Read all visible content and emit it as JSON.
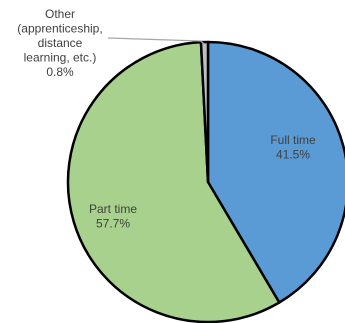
{
  "chart_data": {
    "type": "pie",
    "title": "",
    "slices": [
      {
        "label_lines": [
          "Full time",
          "41.5%"
        ],
        "value": 41.5,
        "color": "#5b9bd5"
      },
      {
        "label_lines": [
          "Part time",
          "57.7%"
        ],
        "value": 57.7,
        "color": "#a9d18e"
      },
      {
        "label_lines": [
          "Other",
          "(apprenticeship,",
          "distance",
          "learning, etc.)",
          "0.8%"
        ],
        "value": 0.8,
        "color": "#bfbfbf"
      }
    ]
  }
}
